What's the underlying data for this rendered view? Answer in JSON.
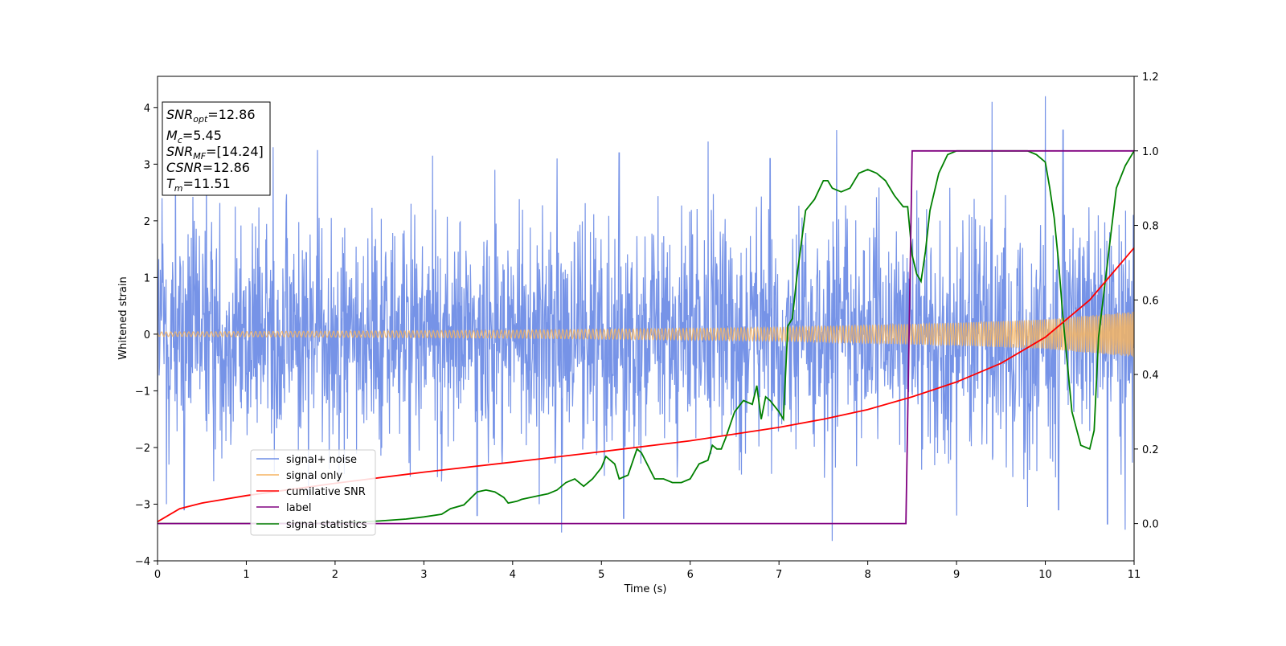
{
  "chart_data": {
    "type": "line",
    "xlabel": "Time (s)",
    "ylabel": "Whitened strain",
    "xlim": [
      0,
      11
    ],
    "ylim_left": [
      -4,
      4.55
    ],
    "ylim_right": [
      -0.1,
      1.2
    ],
    "x_ticks": [
      0,
      1,
      2,
      3,
      4,
      5,
      6,
      7,
      8,
      9,
      10,
      11
    ],
    "y_ticks_left": [
      -4,
      -3,
      -2,
      -1,
      0,
      1,
      2,
      3,
      4
    ],
    "y_ticks_right": [
      0.0,
      0.2,
      0.4,
      0.6,
      0.8,
      1.0,
      1.2
    ],
    "x_tick_labels": [
      "0",
      "1",
      "2",
      "3",
      "4",
      "5",
      "6",
      "7",
      "8",
      "9",
      "10",
      "11"
    ],
    "y_tick_labels_left": [
      "−4",
      "−3",
      "−2",
      "−1",
      "0",
      "1",
      "2",
      "3",
      "4"
    ],
    "y_tick_labels_right": [
      "0.0",
      "0.2",
      "0.4",
      "0.6",
      "0.8",
      "1.0",
      "1.2"
    ],
    "grid": false,
    "legend_position": "lower-left",
    "annotation": {
      "snr_opt": "=12.86",
      "mc": "=5.45",
      "snr_mf": "=[14.24]",
      "csnr": "=12.86",
      "tm": "=11.51"
    },
    "series": [
      {
        "name": "signal+ noise",
        "axis": "left",
        "color": "#6f8de6",
        "description": "whitened noisy strain, approx. zero-mean with std ~1",
        "std": 1.0
      },
      {
        "name": "signal only",
        "axis": "left",
        "color": "#f5b461",
        "description": "chirp amplitude growing with time",
        "amplitude_points": [
          [
            0,
            0.04
          ],
          [
            4,
            0.07
          ],
          [
            7,
            0.12
          ],
          [
            9,
            0.2
          ],
          [
            10,
            0.26
          ],
          [
            11,
            0.4
          ]
        ]
      },
      {
        "name": "cumilative SNR",
        "axis": "right",
        "color": "#ff0000",
        "x": [
          0,
          0.25,
          0.5,
          1,
          2,
          3,
          4,
          5,
          6,
          7,
          7.5,
          8,
          8.5,
          9,
          9.5,
          10,
          10.5,
          11
        ],
        "y": [
          0.005,
          0.04,
          0.055,
          0.075,
          0.108,
          0.138,
          0.165,
          0.193,
          0.222,
          0.258,
          0.28,
          0.306,
          0.34,
          0.38,
          0.43,
          0.5,
          0.6,
          0.74
        ]
      },
      {
        "name": "label",
        "axis": "right",
        "color": "#800080",
        "x": [
          0,
          8.43,
          8.5,
          11
        ],
        "y": [
          0,
          0,
          1,
          1
        ]
      },
      {
        "name": "signal statistics",
        "axis": "right",
        "color": "#008000",
        "x": [
          0,
          1,
          2,
          2.5,
          2.8,
          3,
          3.2,
          3.3,
          3.45,
          3.6,
          3.7,
          3.8,
          3.9,
          3.95,
          4.05,
          4.1,
          4.2,
          4.3,
          4.4,
          4.5,
          4.6,
          4.7,
          4.8,
          4.9,
          5.0,
          5.05,
          5.1,
          5.15,
          5.2,
          5.3,
          5.4,
          5.45,
          5.6,
          5.7,
          5.8,
          5.9,
          6.0,
          6.05,
          6.1,
          6.2,
          6.25,
          6.3,
          6.35,
          6.4,
          6.5,
          6.6,
          6.7,
          6.75,
          6.8,
          6.85,
          6.9,
          7.0,
          7.05,
          7.1,
          7.15,
          7.2,
          7.3,
          7.4,
          7.5,
          7.55,
          7.6,
          7.7,
          7.8,
          7.9,
          8.0,
          8.1,
          8.2,
          8.3,
          8.4,
          8.45,
          8.5,
          8.55,
          8.6,
          8.65,
          8.7,
          8.8,
          8.9,
          9.0,
          9.2,
          9.4,
          9.5,
          9.6,
          9.8,
          9.9,
          10.0,
          10.05,
          10.1,
          10.15,
          10.2,
          10.3,
          10.4,
          10.5,
          10.55,
          10.6,
          10.7,
          10.8,
          10.9,
          11.0
        ],
        "y": [
          0.0,
          0.0,
          0.001,
          0.007,
          0.012,
          0.018,
          0.025,
          0.04,
          0.05,
          0.085,
          0.09,
          0.085,
          0.07,
          0.055,
          0.06,
          0.065,
          0.07,
          0.075,
          0.08,
          0.09,
          0.11,
          0.12,
          0.1,
          0.12,
          0.15,
          0.18,
          0.17,
          0.16,
          0.12,
          0.13,
          0.2,
          0.19,
          0.12,
          0.12,
          0.11,
          0.11,
          0.12,
          0.14,
          0.16,
          0.17,
          0.21,
          0.2,
          0.2,
          0.23,
          0.3,
          0.33,
          0.32,
          0.37,
          0.28,
          0.34,
          0.33,
          0.3,
          0.28,
          0.53,
          0.55,
          0.66,
          0.84,
          0.87,
          0.92,
          0.92,
          0.9,
          0.89,
          0.9,
          0.94,
          0.95,
          0.94,
          0.92,
          0.88,
          0.85,
          0.85,
          0.72,
          0.67,
          0.65,
          0.73,
          0.84,
          0.94,
          0.99,
          1.0,
          1.0,
          1.0,
          1.0,
          1.0,
          1.0,
          0.99,
          0.97,
          0.9,
          0.82,
          0.7,
          0.55,
          0.3,
          0.21,
          0.2,
          0.25,
          0.5,
          0.7,
          0.9,
          0.96,
          1.0
        ]
      }
    ],
    "noise_spikes": [
      [
        0.05,
        2.4
      ],
      [
        0.2,
        3.4
      ],
      [
        0.55,
        3.3
      ],
      [
        1.3,
        3.3
      ],
      [
        1.8,
        3.25
      ],
      [
        3.1,
        3.15
      ],
      [
        3.8,
        2.9
      ],
      [
        4.5,
        3.1
      ],
      [
        5.2,
        3.2
      ],
      [
        6.2,
        3.4
      ],
      [
        6.9,
        3.1
      ],
      [
        7.65,
        3.6
      ],
      [
        9.4,
        4.1
      ],
      [
        10.0,
        4.2
      ],
      [
        10.2,
        3.6
      ],
      [
        0.1,
        -3.0
      ],
      [
        0.3,
        -3.1
      ],
      [
        1.7,
        -2.9
      ],
      [
        3.2,
        -2.6
      ],
      [
        3.6,
        -3.2
      ],
      [
        4.3,
        -3.0
      ],
      [
        4.55,
        -3.5
      ],
      [
        5.25,
        -3.25
      ],
      [
        7.6,
        -3.65
      ],
      [
        9.0,
        -3.2
      ],
      [
        9.8,
        -3.05
      ],
      [
        10.15,
        -3.1
      ],
      [
        10.7,
        -3.35
      ],
      [
        10.9,
        -3.45
      ]
    ]
  }
}
